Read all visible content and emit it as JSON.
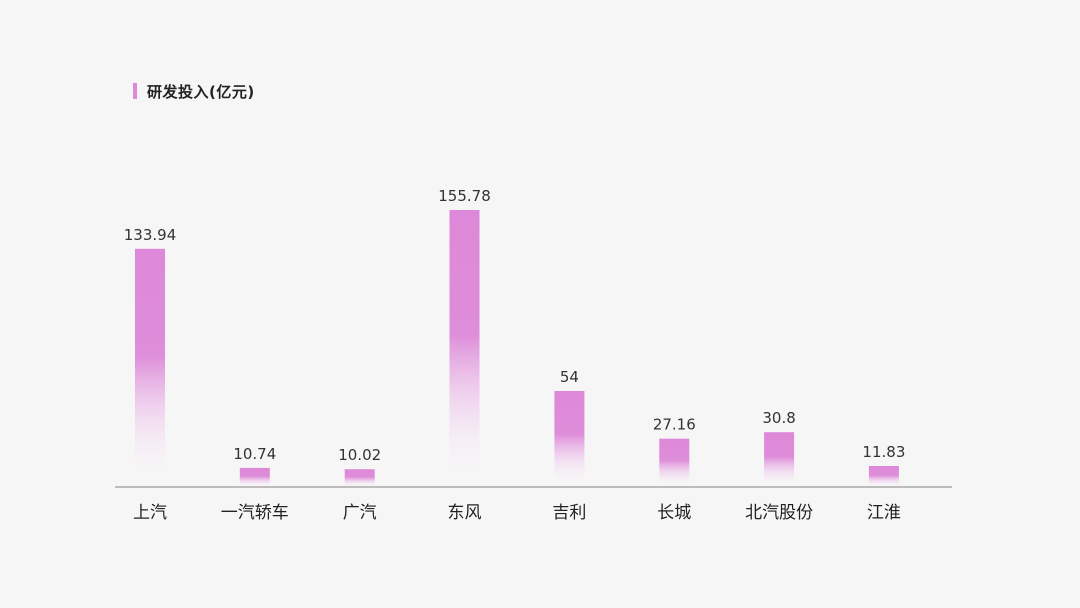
{
  "chart_data": {
    "type": "bar",
    "categories": [
      "上汽",
      "一汽轿车",
      "广汽",
      "东风",
      "吉利",
      "长城",
      "北汽股份",
      "江淮"
    ],
    "series": [
      {
        "name": "研发投入(亿元)",
        "values": [
          133.94,
          10.74,
          10.02,
          155.78,
          54,
          27.16,
          30.8,
          11.83
        ]
      }
    ],
    "value_labels": [
      "133.94",
      "10.74",
      "10.02",
      "155.78",
      "54",
      "27.16",
      "30.8",
      "11.83"
    ],
    "legend_position": "top-left",
    "grid": false,
    "y_axis_visible": false
  },
  "colors": {
    "bar": "#dd88d8",
    "bar_fade": "#ffffff",
    "axis": "#999999",
    "background": "#f6f6f6"
  }
}
